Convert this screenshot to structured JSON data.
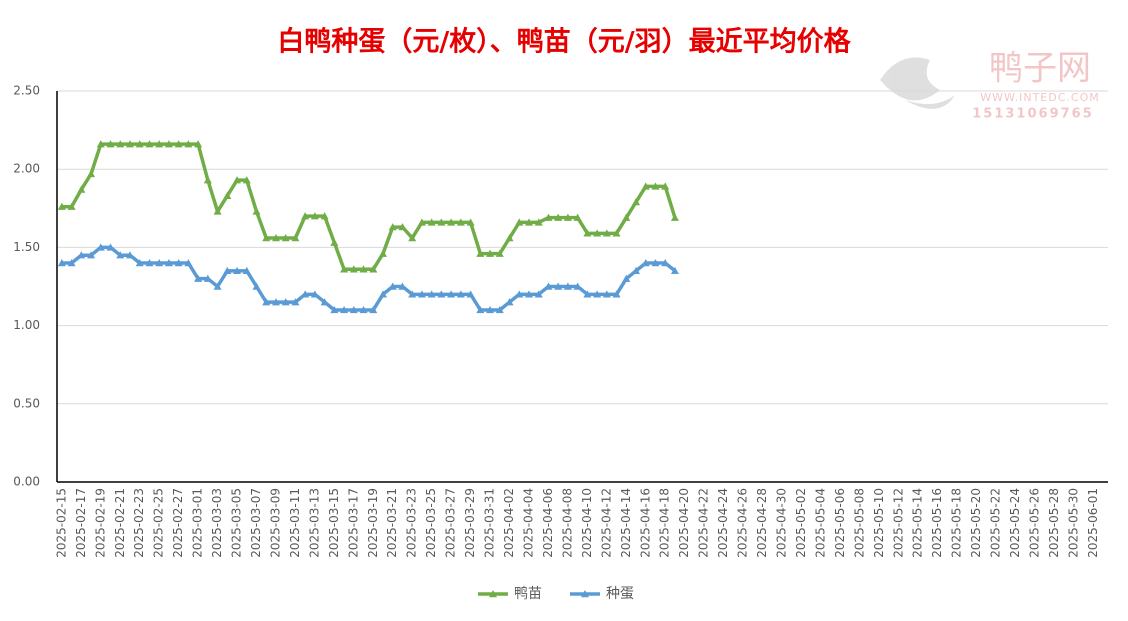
{
  "chart_data": {
    "type": "line",
    "title": "白鸭种蛋（元/枚）、鸭苗（元/羽）最近平均价格",
    "watermark": {
      "name": "鸭子网",
      "url": "WWW.INTEDC.COM",
      "phone": "15131069765"
    },
    "categories": [
      "2025-02-15",
      null,
      "2025-02-17",
      null,
      "2025-02-19",
      null,
      "2025-02-21",
      null,
      "2025-02-23",
      null,
      "2025-02-25",
      null,
      "2025-02-27",
      null,
      "2025-03-01",
      null,
      "2025-03-03",
      null,
      "2025-03-05",
      null,
      "2025-03-07",
      null,
      "2025-03-09",
      null,
      "2025-03-11",
      null,
      "2025-03-13",
      null,
      "2025-03-15",
      null,
      "2025-03-17",
      null,
      "2025-03-19",
      null,
      "2025-03-21",
      null,
      "2025-03-23",
      null,
      "2025-03-25",
      null,
      "2025-03-27",
      null,
      "2025-03-29",
      null,
      "2025-03-31",
      null,
      "2025-04-02",
      null,
      "2025-04-04",
      null,
      "2025-04-06",
      null,
      "2025-04-08",
      null,
      "2025-04-10",
      null,
      "2025-04-12",
      null,
      "2025-04-14",
      null,
      "2025-04-16",
      null,
      "2025-04-18",
      null,
      "2025-04-20",
      null,
      "2025-04-22",
      null,
      "2025-04-24",
      null,
      "2025-04-26",
      null,
      "2025-04-28",
      null,
      "2025-04-30",
      null,
      "2025-05-02",
      null,
      "2025-05-04",
      null,
      "2025-05-06",
      null,
      "2025-05-08",
      null,
      "2025-05-10",
      null,
      "2025-05-12",
      null,
      "2025-05-14",
      null,
      "2025-05-16",
      null,
      "2025-05-18",
      null,
      "2025-05-20",
      null,
      "2025-05-22",
      null,
      "2025-05-24",
      null,
      "2025-05-26",
      null,
      "2025-05-28",
      null,
      "2025-05-30",
      null,
      "2025-06-01",
      null
    ],
    "series": [
      {
        "name": "鸭苗",
        "color": "#70ad47",
        "values": [
          1.76,
          1.76,
          1.87,
          1.97,
          2.16,
          2.16,
          2.16,
          2.16,
          2.16,
          2.16,
          2.16,
          2.16,
          2.16,
          2.16,
          2.16,
          1.93,
          1.73,
          1.83,
          1.93,
          1.93,
          1.73,
          1.56,
          1.56,
          1.56,
          1.56,
          1.7,
          1.7,
          1.7,
          1.53,
          1.36,
          1.36,
          1.36,
          1.36,
          1.46,
          1.63,
          1.63,
          1.56,
          1.66,
          1.66,
          1.66,
          1.66,
          1.66,
          1.66,
          1.46,
          1.46,
          1.46,
          1.56,
          1.66,
          1.66,
          1.66,
          1.69,
          1.69,
          1.69,
          1.69,
          1.59,
          1.59,
          1.59,
          1.59,
          1.69,
          1.79,
          1.89,
          1.89,
          1.89,
          1.69,
          null,
          null,
          null,
          null,
          null,
          null,
          null,
          null,
          null,
          null,
          null,
          null,
          null,
          null,
          null,
          null,
          null,
          null,
          null,
          null,
          null,
          null,
          null,
          null,
          null,
          null,
          null,
          null,
          null,
          null,
          null,
          null,
          null,
          null,
          null,
          null,
          null,
          null,
          null,
          null,
          null,
          null,
          null,
          null
        ]
      },
      {
        "name": "种蛋",
        "color": "#5b9bd5",
        "values": [
          1.4,
          1.4,
          1.45,
          1.45,
          1.5,
          1.5,
          1.45,
          1.45,
          1.4,
          1.4,
          1.4,
          1.4,
          1.4,
          1.4,
          1.3,
          1.3,
          1.25,
          1.35,
          1.35,
          1.35,
          1.25,
          1.15,
          1.15,
          1.15,
          1.15,
          1.2,
          1.2,
          1.15,
          1.1,
          1.1,
          1.1,
          1.1,
          1.1,
          1.2,
          1.25,
          1.25,
          1.2,
          1.2,
          1.2,
          1.2,
          1.2,
          1.2,
          1.2,
          1.1,
          1.1,
          1.1,
          1.15,
          1.2,
          1.2,
          1.2,
          1.25,
          1.25,
          1.25,
          1.25,
          1.2,
          1.2,
          1.2,
          1.2,
          1.3,
          1.35,
          1.4,
          1.4,
          1.4,
          1.35,
          null,
          null,
          null,
          null,
          null,
          null,
          null,
          null,
          null,
          null,
          null,
          null,
          null,
          null,
          null,
          null,
          null,
          null,
          null,
          null,
          null,
          null,
          null,
          null,
          null,
          null,
          null,
          null,
          null,
          null,
          null,
          null,
          null,
          null,
          null,
          null,
          null,
          null,
          null,
          null,
          null,
          null,
          null,
          null
        ]
      }
    ],
    "ylim": [
      0,
      2.5
    ],
    "yticks": [
      {
        "value": 0,
        "label": "0.00"
      },
      {
        "value": 0.5,
        "label": "0.50"
      },
      {
        "value": 1,
        "label": "1.00"
      },
      {
        "value": 1.5,
        "label": "1.50"
      },
      {
        "value": 2,
        "label": "2.00"
      },
      {
        "value": 2.5,
        "label": "2.50"
      }
    ],
    "grid": true,
    "legend": "bottom"
  }
}
